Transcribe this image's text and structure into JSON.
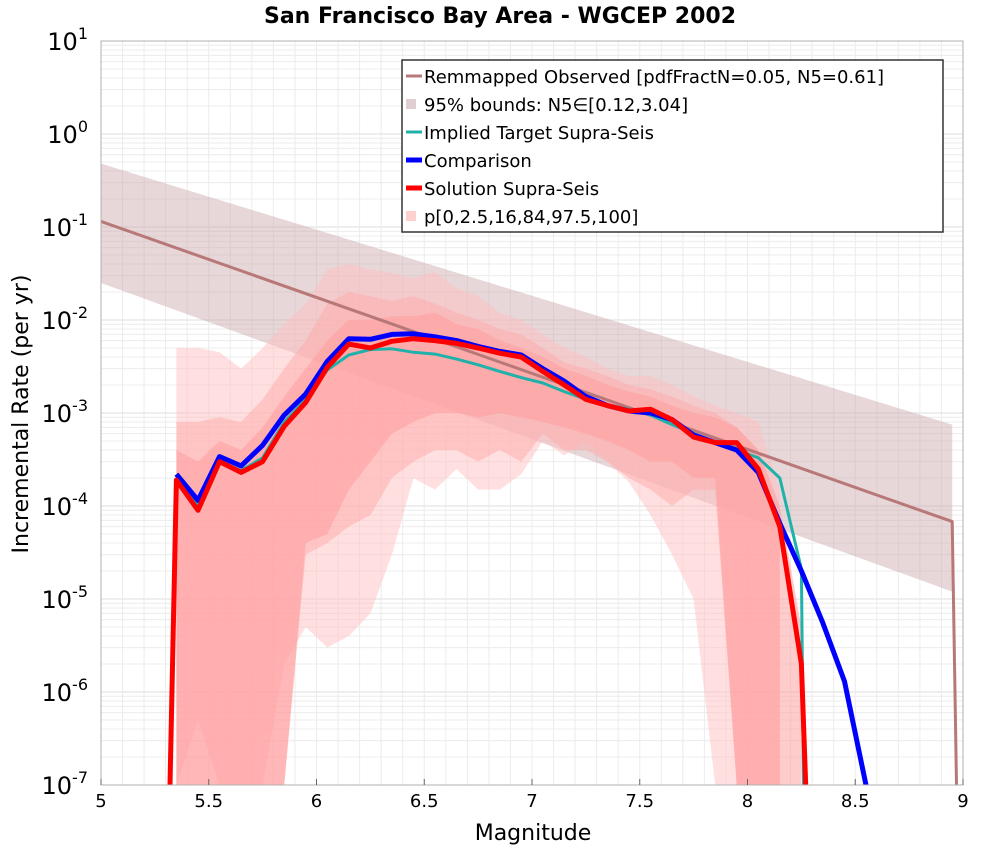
{
  "chart_data": {
    "type": "line",
    "title": "San Francisco Bay Area - WGCEP 2002",
    "xlabel": "Magnitude",
    "ylabel": "Incremental Rate (per yr)",
    "xlim": [
      5,
      9
    ],
    "ylim": [
      1e-07,
      10
    ],
    "yscale": "log",
    "grid": true,
    "legend_position": "top-right",
    "x_ticks": [
      "5",
      "5.5",
      "6",
      "6.5",
      "7",
      "7.5",
      "8",
      "8.5",
      "9"
    ],
    "y_ticks": [
      {
        "base": "10",
        "exp": "1"
      },
      {
        "base": "10",
        "exp": "0"
      },
      {
        "base": "10",
        "exp": "-1"
      },
      {
        "base": "10",
        "exp": "-2"
      },
      {
        "base": "10",
        "exp": "-3"
      },
      {
        "base": "10",
        "exp": "-4"
      },
      {
        "base": "10",
        "exp": "-5"
      },
      {
        "base": "10",
        "exp": "-6"
      },
      {
        "base": "10",
        "exp": "-7"
      }
    ],
    "x": [
      5.35,
      5.45,
      5.55,
      5.65,
      5.75,
      5.85,
      5.95,
      6.05,
      6.15,
      6.25,
      6.35,
      6.45,
      6.55,
      6.65,
      6.75,
      6.85,
      6.95,
      7.05,
      7.15,
      7.25,
      7.35,
      7.45,
      7.55,
      7.65,
      7.75,
      7.85,
      7.95,
      8.05,
      8.15,
      8.25,
      8.35,
      8.45,
      8.55
    ],
    "bands": [
      {
        "name": "95% bounds: N5∈[0.12,3.04]",
        "color": "#c9a6aa",
        "opacity": 0.45,
        "x": [
          5.0,
          8.95
        ],
        "lower": [
          0.025,
          1.2e-05
        ],
        "upper": [
          0.48,
          0.00075
        ]
      },
      {
        "name": "p[0,2.5,16,84,97.5,100]",
        "color": "#ffc0c0",
        "opacity": 0.5,
        "x": [
          5.35,
          5.45,
          5.55,
          5.65,
          5.75,
          5.85,
          5.95,
          6.05,
          6.15,
          6.25,
          6.35,
          6.45,
          6.55,
          6.65,
          6.75,
          6.85,
          6.95,
          7.05,
          7.15,
          7.25,
          7.35,
          7.45,
          7.55,
          7.65,
          7.75,
          7.85,
          7.95,
          8.05,
          8.15
        ],
        "lower": [
          1e-07,
          5e-07,
          1e-07,
          1e-07,
          1e-07,
          2e-06,
          5e-06,
          3e-06,
          4e-06,
          7e-06,
          3e-05,
          0.0002,
          0.00015,
          0.00025,
          0.00015,
          0.00015,
          0.00022,
          0.0005,
          0.00035,
          0.0005,
          0.0003,
          0.00018,
          8e-05,
          3e-05,
          1e-05,
          1e-07,
          1e-07,
          1e-07,
          1e-07
        ],
        "upper": [
          0.005,
          0.005,
          0.0045,
          0.003,
          0.005,
          0.009,
          0.015,
          0.035,
          0.04,
          0.035,
          0.032,
          0.028,
          0.033,
          0.022,
          0.018,
          0.012,
          0.01,
          0.007,
          0.005,
          0.004,
          0.003,
          0.0025,
          0.0025,
          0.002,
          0.0015,
          0.0012,
          0.001,
          0.0008,
          0.00015
        ]
      },
      {
        "name": "p[0,2.5,16,84,97.5,100]",
        "color": "#ffaaaa",
        "opacity": 0.5,
        "x": [
          5.35,
          5.45,
          5.55,
          5.65,
          5.75,
          5.85,
          5.95,
          6.05,
          6.15,
          6.25,
          6.35,
          6.45,
          6.55,
          6.65,
          6.75,
          6.85,
          6.95,
          7.05,
          7.15,
          7.25,
          7.35,
          7.45,
          7.55,
          7.65,
          7.75,
          7.85,
          7.95,
          8.05,
          8.15
        ],
        "lower": [
          1e-07,
          1e-07,
          1e-07,
          1e-07,
          1e-07,
          1e-07,
          3e-05,
          4e-05,
          6e-05,
          8e-05,
          0.0002,
          0.0003,
          0.0004,
          0.0004,
          0.0003,
          0.0004,
          0.0003,
          0.0006,
          0.0004,
          0.0004,
          0.0003,
          0.0002,
          0.00015,
          0.0001,
          0.00015,
          0.00015,
          1e-07,
          1e-07,
          1e-07
        ],
        "upper": [
          0.0008,
          0.0008,
          0.0009,
          0.0008,
          0.0014,
          0.003,
          0.006,
          0.015,
          0.02,
          0.018,
          0.016,
          0.018,
          0.015,
          0.012,
          0.01,
          0.008,
          0.007,
          0.005,
          0.0035,
          0.003,
          0.0025,
          0.002,
          0.0018,
          0.0015,
          0.0012,
          0.001,
          0.0007,
          0.0004,
          5e-05
        ]
      },
      {
        "name": "p[0,2.5,16,84,97.5,100]",
        "color": "#ff9999",
        "opacity": 0.5,
        "x": [
          5.35,
          5.45,
          5.55,
          5.65,
          5.75,
          5.85,
          5.95,
          6.05,
          6.15,
          6.25,
          6.35,
          6.45,
          6.55,
          6.65,
          6.75,
          6.85,
          6.95,
          7.05,
          7.15,
          7.25,
          7.35,
          7.45,
          7.55,
          7.65,
          7.75,
          7.85,
          7.95,
          8.05,
          8.15,
          8.25
        ],
        "lower": [
          1e-07,
          1e-07,
          1e-07,
          1e-07,
          1e-07,
          1e-07,
          4e-05,
          5e-05,
          0.00015,
          0.0003,
          0.0006,
          0.0008,
          0.001,
          0.001,
          0.0009,
          0.001,
          0.0009,
          0.0008,
          0.0007,
          0.0006,
          0.0005,
          0.0004,
          0.0003,
          0.0003,
          0.0002,
          0.0002,
          1e-07,
          1e-07,
          1e-07,
          1e-07
        ],
        "upper": [
          0.0004,
          0.0003,
          0.0005,
          0.0004,
          0.0007,
          0.0015,
          0.003,
          0.006,
          0.01,
          0.01,
          0.011,
          0.011,
          0.012,
          0.009,
          0.008,
          0.006,
          0.005,
          0.004,
          0.003,
          0.0025,
          0.002,
          0.0017,
          0.0015,
          0.0012,
          0.001,
          0.0009,
          0.0007,
          0.0004,
          0.0001,
          5e-06
        ]
      }
    ],
    "series": [
      {
        "name": "Remmapped Observed [pdfFractN=0.05, N5=0.61]",
        "color": "#b87878",
        "width": 3,
        "x": [
          5.0,
          8.95,
          8.97
        ],
        "y": [
          0.115,
          6.8e-05,
          1e-07
        ]
      },
      {
        "name": "Implied Target Supra-Seis",
        "color": "#20b2aa",
        "width": 3,
        "x": [
          5.35,
          5.45,
          5.55,
          5.65,
          5.75,
          5.85,
          5.95,
          6.05,
          6.15,
          6.25,
          6.35,
          6.45,
          6.55,
          6.65,
          6.75,
          6.85,
          6.95,
          7.05,
          7.15,
          7.25,
          7.35,
          7.45,
          7.55,
          7.65,
          7.75,
          7.85,
          7.95,
          8.05,
          8.15,
          8.25,
          8.26
        ],
        "y": [
          0.00019,
          0.0001,
          0.0003,
          0.00024,
          0.00033,
          0.0008,
          0.0014,
          0.0029,
          0.0042,
          0.0048,
          0.0049,
          0.0045,
          0.0043,
          0.0038,
          0.0033,
          0.0028,
          0.0024,
          0.0021,
          0.0017,
          0.0014,
          0.0012,
          0.0011,
          0.00095,
          0.00075,
          0.0006,
          0.00048,
          0.0004,
          0.00033,
          0.0002,
          2.1e-05,
          1e-07
        ]
      },
      {
        "name": "Comparison",
        "color": "#0000ff",
        "width": 5,
        "x": [
          5.35,
          5.45,
          5.55,
          5.65,
          5.75,
          5.85,
          5.95,
          6.05,
          6.15,
          6.25,
          6.35,
          6.45,
          6.55,
          6.65,
          6.75,
          6.85,
          6.95,
          7.05,
          7.15,
          7.25,
          7.35,
          7.45,
          7.55,
          7.65,
          7.75,
          7.85,
          7.95,
          8.05,
          8.15,
          8.25,
          8.35,
          8.45,
          8.55
        ],
        "y": [
          0.00022,
          0.000115,
          0.00034,
          0.00027,
          0.00045,
          0.00095,
          0.0016,
          0.0036,
          0.0063,
          0.0062,
          0.007,
          0.0071,
          0.0066,
          0.006,
          0.0052,
          0.0046,
          0.0042,
          0.003,
          0.0022,
          0.0015,
          0.0012,
          0.00105,
          0.001,
          0.00085,
          0.00058,
          0.00048,
          0.0004,
          0.00023,
          6.5e-05,
          2e-05,
          5.5e-06,
          1.3e-06,
          1e-07
        ]
      },
      {
        "name": "Solution Supra-Seis",
        "color": "#ff0000",
        "width": 5,
        "x": [
          5.32,
          5.35,
          5.45,
          5.55,
          5.65,
          5.75,
          5.85,
          5.95,
          6.05,
          6.15,
          6.25,
          6.35,
          6.45,
          6.55,
          6.65,
          6.75,
          6.85,
          6.95,
          7.05,
          7.15,
          7.25,
          7.35,
          7.45,
          7.55,
          7.65,
          7.75,
          7.85,
          7.95,
          8.05,
          8.15,
          8.25,
          8.27
        ],
        "y": [
          1e-07,
          0.00019,
          9e-05,
          0.0003,
          0.00023,
          0.0003,
          0.00072,
          0.0013,
          0.0031,
          0.0055,
          0.005,
          0.0059,
          0.0063,
          0.006,
          0.0056,
          0.005,
          0.0044,
          0.004,
          0.0028,
          0.002,
          0.0014,
          0.0012,
          0.00105,
          0.0011,
          0.00085,
          0.00055,
          0.00048,
          0.00048,
          0.00025,
          6e-05,
          2e-06,
          1e-07
        ]
      }
    ],
    "legend": [
      {
        "label": "Remmapped Observed [pdfFractN=0.05, N5=0.61]",
        "kind": "line",
        "color": "#b87878"
      },
      {
        "label": "95% bounds: N5∈[0.12,3.04]",
        "kind": "box",
        "color": "#e0cfd1"
      },
      {
        "label": "Implied Target Supra-Seis",
        "kind": "line",
        "color": "#20b2aa"
      },
      {
        "label": "Comparison",
        "kind": "line-thick",
        "color": "#0000ff"
      },
      {
        "label": "Solution Supra-Seis",
        "kind": "line-thick",
        "color": "#ff0000"
      },
      {
        "label": "p[0,2.5,16,84,97.5,100]",
        "kind": "box",
        "color": "#ffd0d0"
      }
    ]
  }
}
